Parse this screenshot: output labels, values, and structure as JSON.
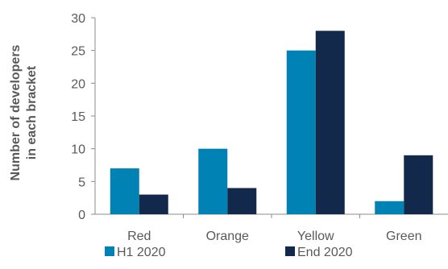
{
  "chart_data": {
    "type": "bar",
    "categories": [
      "Red",
      "Orange",
      "Yellow",
      "Green"
    ],
    "series": [
      {
        "name": "H1 2020",
        "values": [
          7,
          10,
          25,
          2
        ],
        "color": "#0082B4"
      },
      {
        "name": "End 2020",
        "values": [
          3,
          4,
          28,
          9
        ],
        "color": "#13294B"
      }
    ],
    "title": "",
    "xlabel": "",
    "ylabel_lines": [
      "Number of developers",
      "in each bracket"
    ],
    "ylim": [
      0,
      30
    ],
    "yticks": [
      0,
      5,
      10,
      15,
      20,
      25,
      30
    ],
    "grid": false,
    "legend_position": "bottom"
  }
}
